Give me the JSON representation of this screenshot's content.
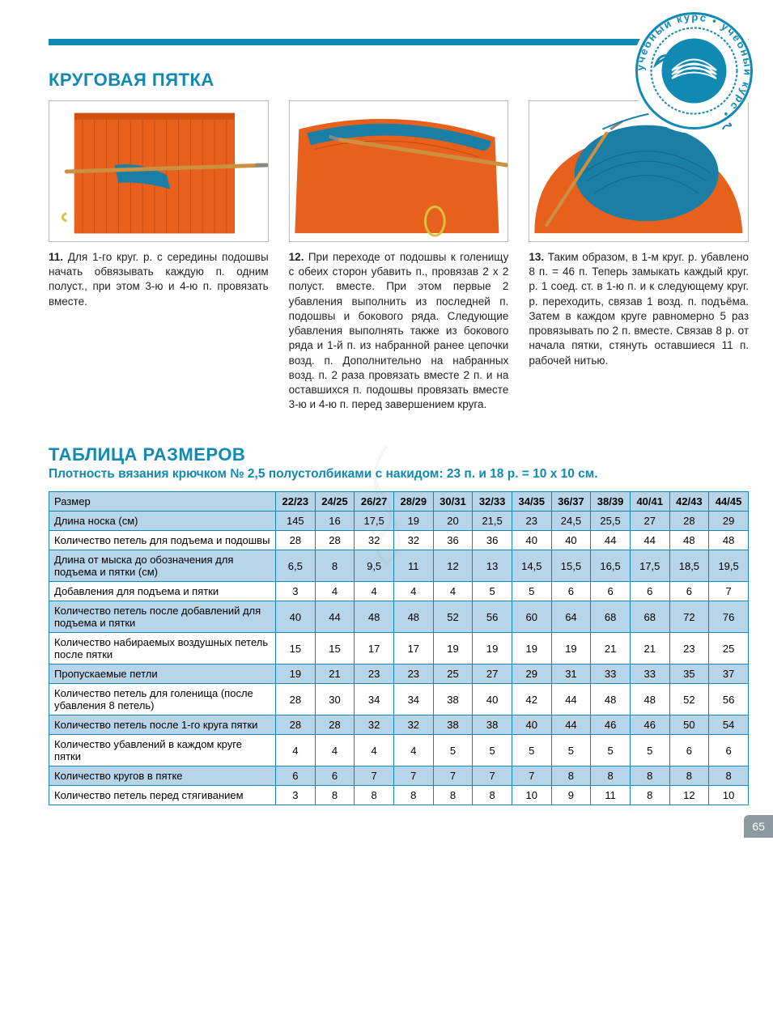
{
  "colors": {
    "brand": "#1089b3",
    "table_border": "#1089b3",
    "alt_row": "#b8d4e8",
    "text": "#222222",
    "pagenum_bg": "#8a9aa0",
    "crochet_orange": "#e8611c",
    "crochet_teal": "#1a7ea5",
    "hook": "#cc9040"
  },
  "logo_text": "учебный курс • учебный курс •",
  "section1_title": "КРУГОВАЯ ПЯТКА",
  "steps": [
    {
      "num": "11.",
      "body": "Для 1-го круг. р. с середины подошвы начать обвязывать каждую п. одним полуст., при этом 3-ю и 4-ю п. провязать вместе."
    },
    {
      "num": "12.",
      "body": "При переходе от подошвы к голенищу с обеих сторон убавить п., провязав 2 х 2 полуст. вместе. При этом первые 2 убавления выполнить из последней п. подошвы и бокового ряда. Следующие убавления выполнять также из бокового ряда и 1-й п. из набранной ранее цепочки возд. п. Дополнительно на набранных возд. п. 2 раза провязать вместе 2 п. и на оставшихся п. подошвы провязать вместе 3-ю и 4-ю п. перед завершением круга."
    },
    {
      "num": "13.",
      "body": "Таким образом, в 1-м круг. р. убавлено 8 п. = 46 п. Теперь замыкать каждый круг. р. 1 соед. ст. в 1-ю п. и к следующему круг. р. переходить, связав 1 возд. п. подъёма. Затем в каждом круге равномерно 5 раз провязывать по 2 п. вместе. Связав 8 р. от начала пятки, стянуть оставшиеся 11 п. рабочей нитью."
    }
  ],
  "table_title": "ТАБЛИЦА РАЗМЕРОВ",
  "table_subtitle": "Плотность вязания крючком № 2,5 полустолбиками с накидом: 23 п. и 18 р. = 10 х 10 см.",
  "size_table": {
    "header_label": "Размер",
    "sizes": [
      "22/23",
      "24/25",
      "26/27",
      "28/29",
      "30/31",
      "32/33",
      "34/35",
      "36/37",
      "38/39",
      "40/41",
      "42/43",
      "44/45"
    ],
    "rows": [
      {
        "label": "Длина носка (см)",
        "vals": [
          "145",
          "16",
          "17,5",
          "19",
          "20",
          "21,5",
          "23",
          "24,5",
          "25,5",
          "27",
          "28",
          "29"
        ],
        "alt": true
      },
      {
        "label": "Количество петель для подъема и подошвы",
        "vals": [
          "28",
          "28",
          "32",
          "32",
          "36",
          "36",
          "40",
          "40",
          "44",
          "44",
          "48",
          "48"
        ],
        "alt": false
      },
      {
        "label": "Длина от мыска до обозначения для подъема и пятки (см)",
        "vals": [
          "6,5",
          "8",
          "9,5",
          "11",
          "12",
          "13",
          "14,5",
          "15,5",
          "16,5",
          "17,5",
          "18,5",
          "19,5"
        ],
        "alt": true
      },
      {
        "label": "Добавления для подъема и пятки",
        "vals": [
          "3",
          "4",
          "4",
          "4",
          "4",
          "5",
          "5",
          "6",
          "6",
          "6",
          "6",
          "7"
        ],
        "alt": false
      },
      {
        "label": "Количество петель после добавлений для подъема и пятки",
        "vals": [
          "40",
          "44",
          "48",
          "48",
          "52",
          "56",
          "60",
          "64",
          "68",
          "68",
          "72",
          "76"
        ],
        "alt": true
      },
      {
        "label": "Количество набираемых воздушных петель после пятки",
        "vals": [
          "15",
          "15",
          "17",
          "17",
          "19",
          "19",
          "19",
          "19",
          "21",
          "21",
          "23",
          "25"
        ],
        "alt": false
      },
      {
        "label": "Пропускаемые петли",
        "vals": [
          "19",
          "21",
          "23",
          "23",
          "25",
          "27",
          "29",
          "31",
          "33",
          "33",
          "35",
          "37"
        ],
        "alt": true
      },
      {
        "label": "Количество петель для голенища (после убавления 8 петель)",
        "vals": [
          "28",
          "30",
          "34",
          "34",
          "38",
          "40",
          "42",
          "44",
          "48",
          "48",
          "52",
          "56"
        ],
        "alt": false
      },
      {
        "label": "Количество петель после 1-го круга пятки",
        "vals": [
          "28",
          "28",
          "32",
          "32",
          "38",
          "38",
          "40",
          "44",
          "46",
          "46",
          "50",
          "54"
        ],
        "alt": true
      },
      {
        "label": "Количество убавлений в каждом круге пятки",
        "vals": [
          "4",
          "4",
          "4",
          "4",
          "5",
          "5",
          "5",
          "5",
          "5",
          "5",
          "6",
          "6"
        ],
        "alt": false
      },
      {
        "label": "Количество кругов в пятке",
        "vals": [
          "6",
          "6",
          "7",
          "7",
          "7",
          "7",
          "7",
          "8",
          "8",
          "8",
          "8",
          "8"
        ],
        "alt": true
      },
      {
        "label": "Количество петель перед стягиванием",
        "vals": [
          "3",
          "8",
          "8",
          "8",
          "8",
          "8",
          "10",
          "9",
          "11",
          "8",
          "12",
          "10"
        ],
        "alt": false
      }
    ]
  },
  "page_number": "65"
}
